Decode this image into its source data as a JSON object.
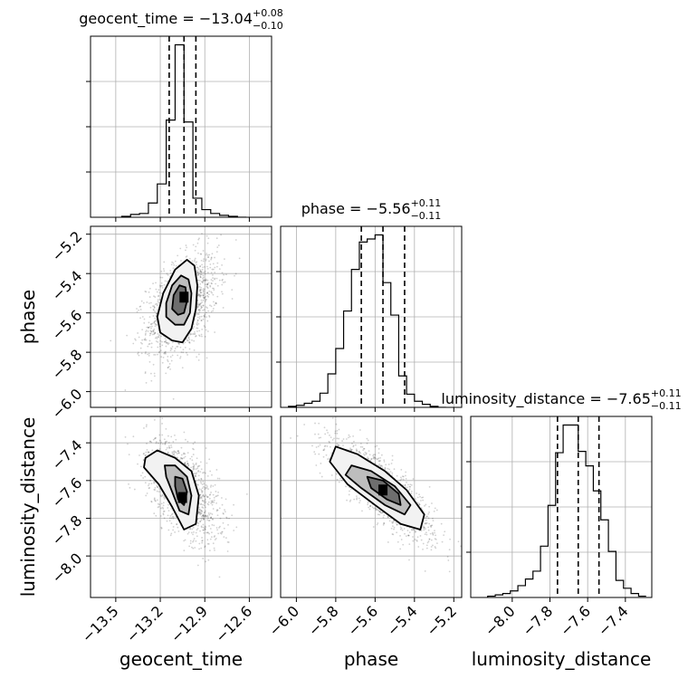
{
  "chart_data": {
    "type": "corner",
    "parameters": [
      "geocent_time",
      "phase",
      "luminosity_distance"
    ],
    "diagonal_titles": [
      {
        "prefix": "geocent_time = −13.04",
        "plus": "+0.08",
        "minus": "−0.10"
      },
      {
        "prefix": "phase = −5.56",
        "plus": "+0.11",
        "minus": "−0.11"
      },
      {
        "prefix": "luminosity_distance = −7.65",
        "plus": "+0.11",
        "minus": "−0.11"
      }
    ],
    "axis_labels": {
      "x": [
        "geocent_time",
        "phase",
        "luminosity_distance"
      ],
      "y": [
        "phase",
        "luminosity_distance"
      ]
    },
    "ranges": {
      "geocent_time": [
        -13.67,
        -12.45
      ],
      "phase": [
        -6.08,
        -5.16
      ],
      "luminosity_distance": [
        -8.22,
        -7.26
      ]
    },
    "ticks": {
      "geocent_time": {
        "values": [
          -13.5,
          -13.2,
          -12.9,
          -12.6
        ],
        "labels": [
          "−13.5",
          "−13.2",
          "−12.9",
          "−12.6"
        ]
      },
      "phase": {
        "values": [
          -6.0,
          -5.8,
          -5.6,
          -5.4,
          -5.2
        ],
        "labels": [
          "−6.0",
          "−5.8",
          "−5.6",
          "−5.4",
          "−5.2"
        ]
      },
      "luminosity_distance": {
        "values": [
          -8.0,
          -7.8,
          -7.6,
          -7.4
        ],
        "labels": [
          "−8.0",
          "−7.8",
          "−7.6",
          "−7.4"
        ]
      }
    },
    "quantiles": {
      "geocent_time": [
        -13.14,
        -13.04,
        -12.96
      ],
      "phase": [
        -5.67,
        -5.56,
        -5.45
      ],
      "luminosity_distance": [
        -7.76,
        -7.65,
        -7.54
      ]
    },
    "histograms": {
      "geocent_time": {
        "bin_edges": [
          -13.46,
          -13.4,
          -13.34,
          -13.28,
          -13.22,
          -13.16,
          -13.1,
          -13.04,
          -12.98,
          -12.92,
          -12.86,
          -12.8,
          -12.74,
          -12.68,
          -12.62
        ],
        "counts": [
          1,
          3,
          4,
          15,
          35,
          102,
          181,
          100,
          20,
          8,
          4,
          2,
          1,
          0
        ]
      },
      "phase": {
        "bin_edges": [
          -6.04,
          -6.0,
          -5.96,
          -5.92,
          -5.88,
          -5.84,
          -5.8,
          -5.76,
          -5.72,
          -5.68,
          -5.64,
          -5.6,
          -5.56,
          -5.52,
          -5.48,
          -5.44,
          -5.4,
          -5.36,
          -5.32,
          -5.28,
          -5.24
        ],
        "counts": [
          1,
          2,
          4,
          6,
          14,
          33,
          58,
          95,
          136,
          163,
          166,
          170,
          123,
          91,
          31,
          13,
          6,
          3,
          1,
          0
        ]
      },
      "luminosity_distance": {
        "bin_edges": [
          -8.13,
          -8.09,
          -8.05,
          -8.01,
          -7.97,
          -7.93,
          -7.89,
          -7.85,
          -7.81,
          -7.77,
          -7.73,
          -7.69,
          -7.65,
          -7.61,
          -7.57,
          -7.53,
          -7.49,
          -7.45,
          -7.41,
          -7.37,
          -7.33,
          -7.29
        ],
        "counts": [
          1,
          2,
          3,
          5,
          9,
          14,
          20,
          39,
          70,
          110,
          131,
          131,
          111,
          100,
          81,
          59,
          35,
          13,
          7,
          3,
          1
        ]
      }
    },
    "contours_2d": [
      {
        "x": "geocent_time",
        "y": "phase",
        "levels": [
          [
            [
              -13.12,
              -5.74
            ],
            [
              -13.2,
              -5.7
            ],
            [
              -13.22,
              -5.62
            ],
            [
              -13.18,
              -5.5
            ],
            [
              -13.1,
              -5.38
            ],
            [
              -13.02,
              -5.33
            ],
            [
              -12.97,
              -5.36
            ],
            [
              -12.95,
              -5.46
            ],
            [
              -12.96,
              -5.58
            ],
            [
              -12.99,
              -5.68
            ],
            [
              -13.05,
              -5.75
            ]
          ],
          [
            [
              -13.1,
              -5.66
            ],
            [
              -13.16,
              -5.62
            ],
            [
              -13.16,
              -5.55
            ],
            [
              -13.12,
              -5.46
            ],
            [
              -13.06,
              -5.41
            ],
            [
              -13.01,
              -5.43
            ],
            [
              -12.99,
              -5.5
            ],
            [
              -13.0,
              -5.6
            ],
            [
              -13.04,
              -5.66
            ]
          ],
          [
            [
              -13.08,
              -5.61
            ],
            [
              -13.12,
              -5.58
            ],
            [
              -13.11,
              -5.51
            ],
            [
              -13.07,
              -5.46
            ],
            [
              -13.03,
              -5.47
            ],
            [
              -13.02,
              -5.54
            ],
            [
              -13.04,
              -5.6
            ]
          ]
        ],
        "density_peak": [
          -13.04,
          -5.52
        ],
        "scatter_center": [
          -13.05,
          -5.56
        ],
        "scatter_spread": [
          0.12,
          0.13
        ],
        "scatter_correlation": 0.45
      },
      {
        "x": "geocent_time",
        "y": "luminosity_distance",
        "levels": [
          [
            [
              -13.3,
              -7.48
            ],
            [
              -13.22,
              -7.44
            ],
            [
              -13.1,
              -7.48
            ],
            [
              -12.99,
              -7.55
            ],
            [
              -12.94,
              -7.68
            ],
            [
              -12.96,
              -7.83
            ],
            [
              -13.04,
              -7.86
            ],
            [
              -13.12,
              -7.74
            ],
            [
              -13.21,
              -7.62
            ],
            [
              -13.31,
              -7.53
            ]
          ],
          [
            [
              -13.17,
              -7.52
            ],
            [
              -13.1,
              -7.52
            ],
            [
              -13.02,
              -7.58
            ],
            [
              -12.99,
              -7.68
            ],
            [
              -13.01,
              -7.78
            ],
            [
              -13.07,
              -7.76
            ],
            [
              -13.12,
              -7.66
            ],
            [
              -13.16,
              -7.58
            ]
          ],
          [
            [
              -13.1,
              -7.58
            ],
            [
              -13.05,
              -7.59
            ],
            [
              -13.02,
              -7.66
            ],
            [
              -13.04,
              -7.73
            ],
            [
              -13.08,
              -7.7
            ],
            [
              -13.1,
              -7.63
            ]
          ]
        ],
        "density_peak": [
          -13.05,
          -7.69
        ],
        "scatter_center": [
          -13.05,
          -7.65
        ],
        "scatter_spread": [
          0.12,
          0.13
        ],
        "scatter_correlation": -0.55
      },
      {
        "x": "phase",
        "y": "luminosity_distance",
        "levels": [
          [
            [
              -5.8,
              -7.42
            ],
            [
              -5.69,
              -7.46
            ],
            [
              -5.55,
              -7.55
            ],
            [
              -5.44,
              -7.65
            ],
            [
              -5.35,
              -7.78
            ],
            [
              -5.37,
              -7.86
            ],
            [
              -5.47,
              -7.83
            ],
            [
              -5.6,
              -7.73
            ],
            [
              -5.74,
              -7.62
            ],
            [
              -5.83,
              -7.5
            ]
          ],
          [
            [
              -5.72,
              -7.52
            ],
            [
              -5.62,
              -7.55
            ],
            [
              -5.5,
              -7.63
            ],
            [
              -5.42,
              -7.73
            ],
            [
              -5.45,
              -7.78
            ],
            [
              -5.55,
              -7.73
            ],
            [
              -5.67,
              -7.64
            ],
            [
              -5.75,
              -7.57
            ]
          ],
          [
            [
              -5.64,
              -7.58
            ],
            [
              -5.56,
              -7.6
            ],
            [
              -5.48,
              -7.67
            ],
            [
              -5.47,
              -7.73
            ],
            [
              -5.54,
              -7.7
            ],
            [
              -5.62,
              -7.64
            ]
          ]
        ],
        "density_peak": [
          -5.56,
          -7.65
        ],
        "scatter_center": [
          -5.56,
          -7.65
        ],
        "scatter_spread": [
          0.13,
          0.13
        ],
        "scatter_correlation": -0.82
      }
    ],
    "grid": true
  }
}
